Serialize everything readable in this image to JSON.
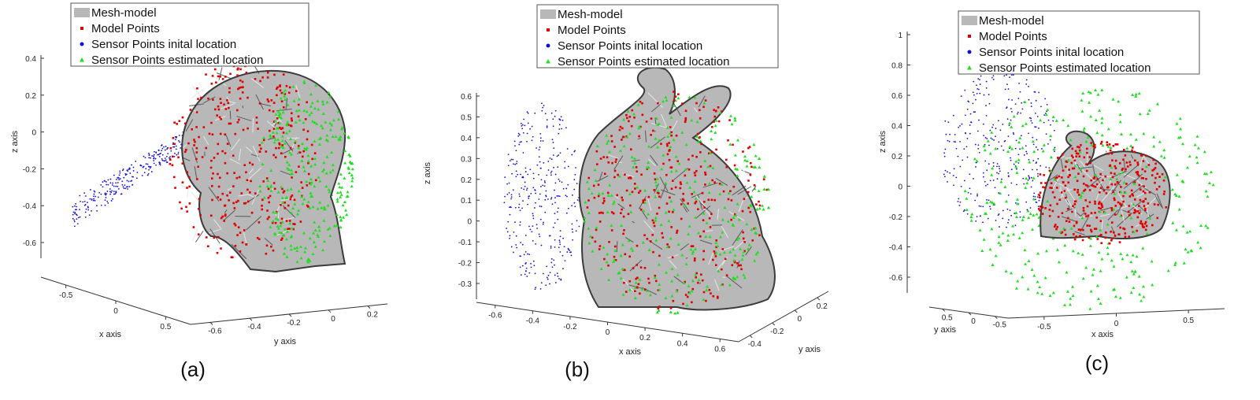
{
  "colors": {
    "mesh": "#b8b8b8",
    "mesh_dark": "#4a4a4a",
    "model_points": "#e00000",
    "sensor_initial": "#1010d0",
    "sensor_estimated": "#22dd22",
    "axis": "#333333"
  },
  "legend": [
    {
      "label": "Mesh-model",
      "marker": "patch"
    },
    {
      "label": "Model Points",
      "marker": "square"
    },
    {
      "label": "Sensor Points inital location",
      "marker": "dot"
    },
    {
      "label": "Sensor Points estimated location",
      "marker": "triangle"
    }
  ],
  "chart_data": [
    {
      "type": "scatter",
      "caption": "(a)",
      "mesh": "head",
      "xlabel": "x axis",
      "ylabel": "y axis",
      "zlabel": "z axis",
      "z_ticks": [
        "0.4",
        "0.2",
        "0",
        "-0.2",
        "-0.4",
        "-0.6"
      ],
      "x_ticks": [
        "-0.5",
        "0",
        "0.5"
      ],
      "y_ticks": [
        "-0.6",
        "-0.4",
        "-0.2",
        "0",
        "0.2"
      ],
      "series": [
        {
          "name": "Mesh-model"
        },
        {
          "name": "Model Points"
        },
        {
          "name": "Sensor Points inital location"
        },
        {
          "name": "Sensor Points estimated location"
        }
      ],
      "legend_position": "top"
    },
    {
      "type": "scatter",
      "caption": "(b)",
      "mesh": "bunny",
      "xlabel": "x axis",
      "ylabel": "y axis",
      "zlabel": "z axis",
      "z_ticks": [
        "0.6",
        "0.5",
        "0.4",
        "0.3",
        "0.2",
        "0.1",
        "0",
        "-0.1",
        "-0.2",
        "-0.3"
      ],
      "x_ticks": [
        "-0.6",
        "-0.4",
        "-0.2",
        "0",
        "0.2",
        "0.4",
        "0.6"
      ],
      "y_ticks": [
        "-0.4",
        "-0.2",
        "0",
        "0.2"
      ],
      "series": [
        {
          "name": "Mesh-model"
        },
        {
          "name": "Model Points"
        },
        {
          "name": "Sensor Points inital location"
        },
        {
          "name": "Sensor Points estimated location"
        }
      ],
      "legend_position": "top"
    },
    {
      "type": "scatter",
      "caption": "(c)",
      "mesh": "dragon",
      "xlabel": "x axis",
      "ylabel": "y axis",
      "zlabel": "z axis",
      "z_ticks": [
        "1",
        "0.8",
        "0.6",
        "0.4",
        "0.2",
        "0",
        "-0.2",
        "-0.4",
        "-0.6"
      ],
      "x_ticks": [
        "-0.5",
        "0",
        "0.5"
      ],
      "y_ticks": [
        "0.5",
        "0",
        "-0.5"
      ],
      "series": [
        {
          "name": "Mesh-model"
        },
        {
          "name": "Model Points"
        },
        {
          "name": "Sensor Points inital location"
        },
        {
          "name": "Sensor Points estimated location"
        }
      ],
      "legend_position": "top"
    }
  ]
}
